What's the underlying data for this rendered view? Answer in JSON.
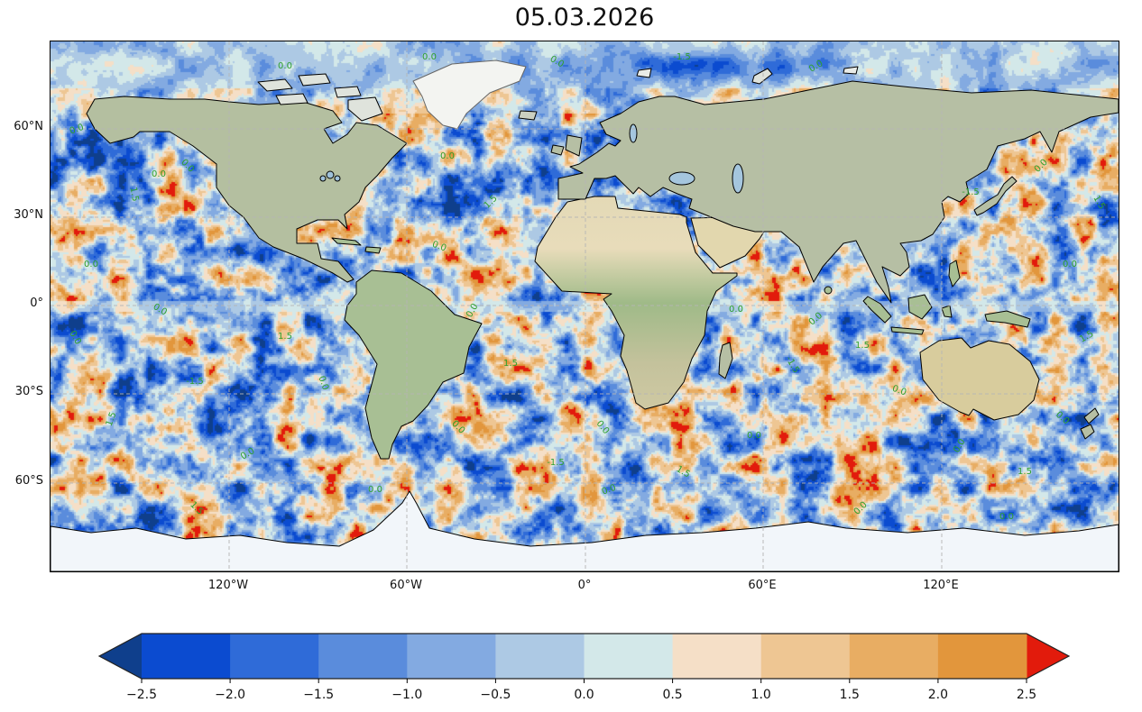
{
  "title": "05.03.2026",
  "axes": {
    "lat_tick_labels": [
      "60°N",
      "30°N",
      "0°",
      "30°S",
      "60°S"
    ],
    "lon_tick_labels": [
      "120°W",
      "60°W",
      "0°",
      "60°E",
      "120°E"
    ]
  },
  "colorbar": {
    "tick_labels": [
      "−2.5",
      "−2.0",
      "−1.5",
      "−1.0",
      "−0.5",
      "0.0",
      "0.5",
      "1.0",
      "1.5",
      "2.0",
      "2.5"
    ],
    "levels": [
      -2.5,
      -2.0,
      -1.5,
      -1.0,
      -0.5,
      0.0,
      0.5,
      1.0,
      1.5,
      2.0,
      2.5
    ],
    "colors": [
      "#0b4bd0",
      "#2f6bd8",
      "#5a8cdc",
      "#83aae1",
      "#adc9e4",
      "#d3e8e9",
      "#f5dfc7",
      "#eec693",
      "#e8ad63",
      "#e2963c"
    ],
    "under_color": "#0f3f8c",
    "over_color": "#e21b0c",
    "outline_color": "#222222"
  },
  "contour_labels": {
    "color": "#2fa02e",
    "values": [
      "0.0",
      "1.5",
      "-1.5"
    ]
  },
  "map_colors": {
    "land_green": "#b6bfa4",
    "land_green_dark": "#a8bf94",
    "land_tan": "#e2d7ae",
    "ice": "#f2f6fa",
    "greenland": "#f3f4f1",
    "lake": "#a5c6de",
    "coastline": "#000000",
    "gridline": "#b5b5b5"
  },
  "chart_data": {
    "type": "heatmap",
    "title": "05.03.2026",
    "projection": "equirectangular world map",
    "x_ticks": [
      "120°W",
      "60°W",
      "0°",
      "60°E",
      "120°E"
    ],
    "y_ticks": [
      "60°N",
      "30°N",
      "0°",
      "30°S",
      "60°S"
    ],
    "lon_range": [
      -180,
      180
    ],
    "lat_range": [
      -90,
      90
    ],
    "colorbar_levels": [
      -2.5,
      -2.0,
      -1.5,
      -1.0,
      -0.5,
      0.0,
      0.5,
      1.0,
      1.5,
      2.0,
      2.5
    ],
    "colorbar_colors": [
      "#0b4bd0",
      "#2f6bd8",
      "#5a8cdc",
      "#83aae1",
      "#adc9e4",
      "#d3e8e9",
      "#f5dfc7",
      "#eec693",
      "#e8ad63",
      "#e2963c"
    ],
    "colorbar_extend": "both",
    "under_color": "#0f3f8c",
    "over_color": "#e21b0c",
    "value_range_displayed": [
      -2.5,
      2.5
    ],
    "contour_label_values": [
      -1.5,
      0.0,
      1.5
    ],
    "description": "Global gridded anomaly field over oceans (mottled blue/orange patches with saturated red above 2.5 and dark blue below −2.5), green-labelled contour lines at −1.5, 0.0 and 1.5, land shown in terrain colors, Greenland and Antarctica in white"
  }
}
